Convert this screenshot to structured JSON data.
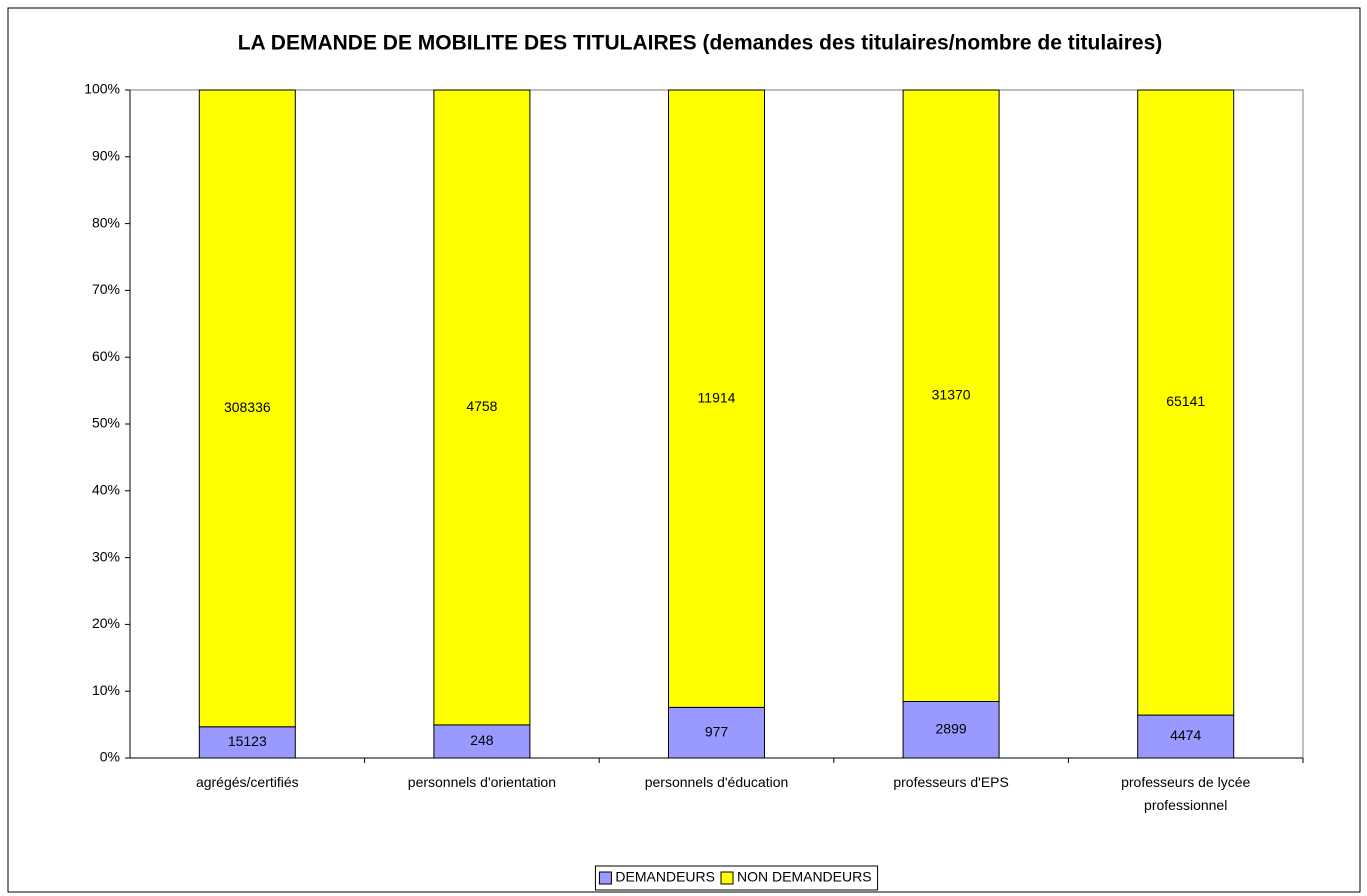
{
  "chart_data": {
    "type": "bar",
    "stacking": "percent",
    "title": "LA DEMANDE DE MOBILITE DES TITULAIRES (demandes des titulaires/nombre de titulaires)",
    "categories": [
      "agrégés/certifiés",
      "personnels d'orientation",
      "personnels d'éducation",
      "professeurs d'EPS",
      "professeurs de lycée professionnel"
    ],
    "series": [
      {
        "name": "DEMANDEURS",
        "color": "#9999ff",
        "values": [
          15123,
          248,
          977,
          2899,
          4474
        ]
      },
      {
        "name": "NON DEMANDEURS",
        "color": "#ffff00",
        "values": [
          308336,
          4758,
          11914,
          31370,
          65141
        ]
      }
    ],
    "ylim": [
      0,
      100
    ],
    "yticks": [
      {
        "value": 0,
        "label": "0%"
      },
      {
        "value": 10,
        "label": "10%"
      },
      {
        "value": 20,
        "label": "20%"
      },
      {
        "value": 30,
        "label": "30%"
      },
      {
        "value": 40,
        "label": "40%"
      },
      {
        "value": 50,
        "label": "50%"
      },
      {
        "value": 60,
        "label": "60%"
      },
      {
        "value": 70,
        "label": "70%"
      },
      {
        "value": 80,
        "label": "80%"
      },
      {
        "value": 90,
        "label": "90%"
      },
      {
        "value": 100,
        "label": "100%"
      }
    ],
    "grid": false,
    "legend": "bottom"
  }
}
